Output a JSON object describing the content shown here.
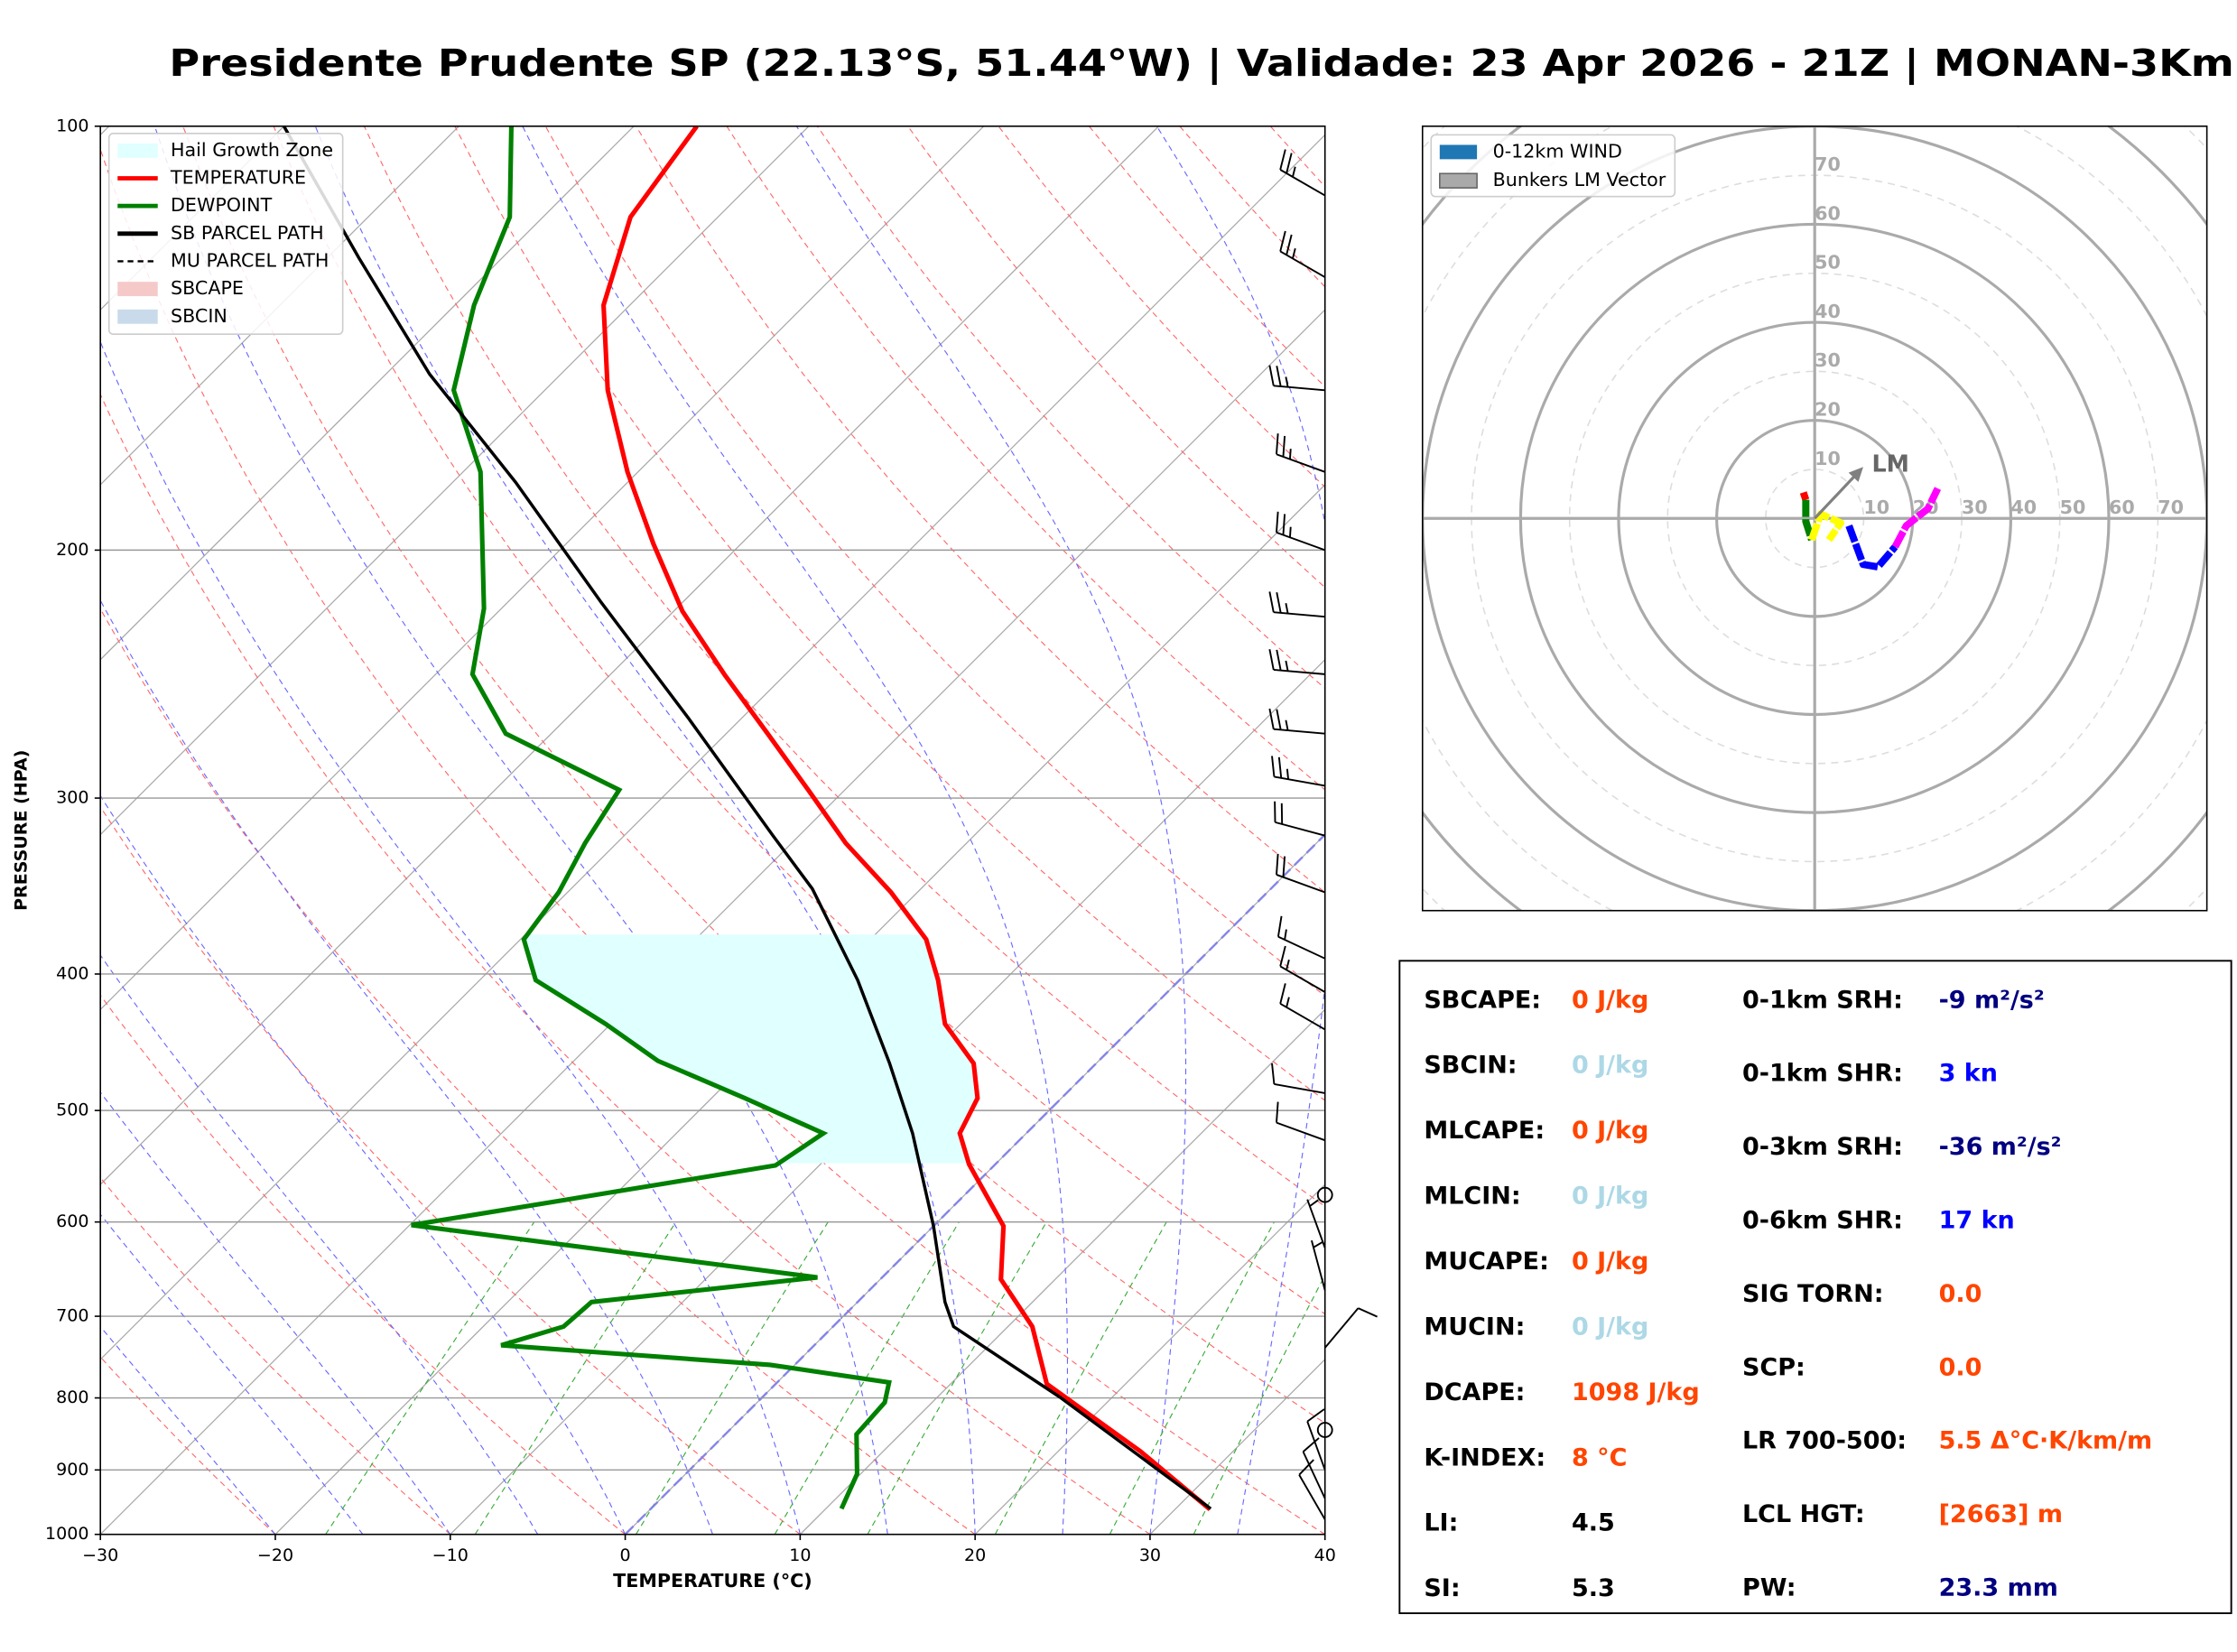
{
  "title": "Presidente Prudente SP (22.13°S, 51.44°W) | Validade: 23 Apr 2026 - 21Z | MONAN-3Km",
  "chart_data": [
    {
      "type": "skewt",
      "xlabel": "TEMPERATURE (°C)",
      "ylabel": "PRESSURE (HPA)",
      "xlim": [
        -30,
        40
      ],
      "ylim": [
        1000,
        100
      ],
      "xticks": [
        {
          "value": -30,
          "label": "−30"
        },
        {
          "value": -20,
          "label": "−20"
        },
        {
          "value": -10,
          "label": "−10"
        },
        0,
        10,
        20,
        30,
        40
      ],
      "yticks": [
        100,
        200,
        300,
        400,
        500,
        600,
        700,
        800,
        900,
        1000
      ],
      "grid": true,
      "hail_zone": {
        "name": "Hail Growth Zone",
        "color": "#e0ffff",
        "plim": [
          545,
          375
        ]
      },
      "series": [
        {
          "name": "TEMPERATURE",
          "color": "#ff0000",
          "pressure": [
            960,
            873,
            782,
            712,
            659,
            604,
            546,
            519,
            490,
            463,
            434,
            404,
            378,
            350,
            323,
            297,
            271,
            245,
            221,
            198,
            176,
            154,
            134,
            116,
            100
          ],
          "values": [
            32,
            24.7,
            15.5,
            11.4,
            6.9,
            4.0,
            -1.5,
            -3.8,
            -4.8,
            -7.0,
            -10.9,
            -13.8,
            -16.8,
            -21.5,
            -26.9,
            -31.9,
            -37.4,
            -43.5,
            -49.5,
            -55,
            -60.6,
            -66.4,
            -71.5,
            -75,
            -76.4
          ]
        },
        {
          "name": "DEWPOINT",
          "color": "#008000",
          "pressure": [
            959,
            906,
            849,
            806,
            780,
            758,
            734,
            712,
            684,
            657,
            603,
            547,
            519,
            490,
            461,
            434,
            404,
            378,
            350,
            323,
            296,
            270,
            245,
            220,
            176,
            154,
            134,
            116,
            100
          ],
          "values": [
            10.9,
            9.8,
            7.5,
            7.3,
            6.4,
            -1.4,
            -17.9,
            -15.4,
            -15.2,
            -3.7,
            -29.9,
            -12.5,
            -11.6,
            -18.1,
            -25.2,
            -30.3,
            -36.8,
            -39.8,
            -40.5,
            -41.8,
            -42.9,
            -52.6,
            -57.9,
            -61,
            -69,
            -75.2,
            -78.9,
            -81.9,
            -87
          ]
        },
        {
          "name": "SB PARCEL PATH",
          "color": "#000000",
          "pressure": [
            959,
            800,
            712,
            684,
            604,
            519,
            463,
            404,
            348,
            319,
            263,
            218,
            179,
            150,
            124,
            100
          ],
          "values": [
            32,
            17.1,
            6.9,
            5.0,
            0,
            -6.5,
            -11.8,
            -18.4,
            -26.2,
            -31.5,
            -43.1,
            -54.6,
            -66.4,
            -77.5,
            -88.2,
            -100
          ]
        },
        {
          "name": "MU PARCEL PATH",
          "color": "#000000",
          "dash": true,
          "pressure": [],
          "values": []
        }
      ],
      "fills": [
        {
          "name": "SBCAPE",
          "color": "#f6c9c9"
        },
        {
          "name": "SBCIN",
          "color": "#c9dbea"
        }
      ],
      "winds": {
        "pressure": [
          112,
          128,
          154,
          176,
          200,
          223,
          245,
          270,
          294,
          319,
          350,
          390,
          412,
          438,
          486,
          525,
          574,
          626,
          671,
          737,
          843,
          900,
          943,
          976
        ],
        "speed": [
          25,
          25,
          25,
          25,
          25,
          25,
          25,
          25,
          25,
          20,
          20,
          15,
          15,
          15,
          10,
          10,
          0,
          5,
          5,
          10,
          0,
          10,
          10,
          10
        ],
        "direction": [
          300,
          300,
          275,
          290,
          290,
          275,
          275,
          275,
          280,
          285,
          290,
          295,
          300,
          300,
          280,
          290,
          0,
          340,
          345,
          40,
          0,
          340,
          335,
          330
        ]
      }
    },
    {
      "type": "hodograph",
      "xlim": [
        -80,
        80
      ],
      "ylim": [
        -80,
        80
      ],
      "rticks": [
        10,
        20,
        30,
        40,
        50,
        60,
        70
      ],
      "legend": [
        {
          "label": "0-12km WIND",
          "color": "#1f77b4"
        },
        {
          "label": "Bunkers LM Vector",
          "color": "#a9a9a9"
        }
      ],
      "segments": [
        {
          "color": "#ff0000",
          "u": [
            -2.3,
            -1.8
          ],
          "v": [
            5.3,
            3.8
          ]
        },
        {
          "color": "#008000",
          "u": [
            -1.8,
            -1.8,
            -0.6
          ],
          "v": [
            3.8,
            -0.6,
            -4.4
          ]
        },
        {
          "color": "#ffff00",
          "u": [
            -0.6,
            1.2,
            5.3,
            2.9
          ],
          "v": [
            -4.4,
            0.9,
            -0.9,
            -4.4
          ]
        },
        {
          "color": "#0000ff",
          "u": [
            7.0,
            9.9,
            12.9,
            16.4
          ],
          "v": [
            -1.5,
            -9.4,
            -9.9,
            -5.8
          ]
        },
        {
          "color": "#ff00ff",
          "u": [
            16.4,
            18.7,
            23.1,
            25.1
          ],
          "v": [
            -5.8,
            -1.5,
            2.0,
            6.1
          ]
        }
      ],
      "lm": {
        "label": "LM",
        "u": 9.9,
        "v": 10.5,
        "color": "#808080"
      }
    }
  ],
  "indices": {
    "left": [
      {
        "label": "SBCAPE:",
        "value": "0 J/kg",
        "color": "#ff4500"
      },
      {
        "label": "SBCIN:",
        "value": "0 J/kg",
        "color": "#add8e6"
      },
      {
        "label": "MLCAPE:",
        "value": "0 J/kg",
        "color": "#ff4500"
      },
      {
        "label": "MLCIN:",
        "value": "0 J/kg",
        "color": "#add8e6"
      },
      {
        "label": "MUCAPE:",
        "value": "0 J/kg",
        "color": "#ff4500"
      },
      {
        "label": "MUCIN:",
        "value": "0 J/kg",
        "color": "#add8e6"
      },
      {
        "label": "DCAPE:",
        "value": "1098 J/kg",
        "color": "#ff4500"
      },
      {
        "label": "K-INDEX:",
        "value": "8 °C",
        "color": "#ff4500"
      },
      {
        "label": "LI:",
        "value": "4.5",
        "color": "#000000"
      },
      {
        "label": "SI:",
        "value": "5.3",
        "color": "#000000"
      }
    ],
    "right": [
      {
        "label": "0-1km SRH:",
        "value": "-9 m²/s²",
        "color": "#000080"
      },
      {
        "label": "0-1km SHR:",
        "value": "3 kn",
        "color": "#0000ff"
      },
      {
        "label": "0-3km SRH:",
        "value": "-36 m²/s²",
        "color": "#000080"
      },
      {
        "label": "0-6km SHR:",
        "value": "17 kn",
        "color": "#0000ff"
      },
      {
        "label": "SIG TORN:",
        "value": "0.0",
        "color": "#ff4500"
      },
      {
        "label": "SCP:",
        "value": "0.0",
        "color": "#ff4500"
      },
      {
        "label": "LR 700-500:",
        "value": "5.5 Δ°C·K/km/m",
        "color": "#ff4500"
      },
      {
        "label": "LCL HGT:",
        "value": "[2663] m",
        "color": "#ff4500"
      },
      {
        "label": "PW:",
        "value": "23.3 mm",
        "color": "#000080"
      }
    ]
  }
}
